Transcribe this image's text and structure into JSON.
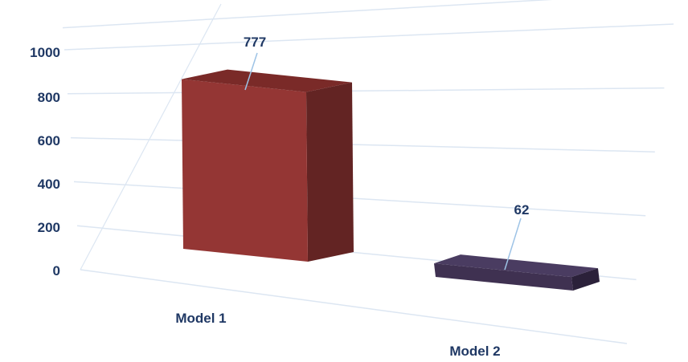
{
  "chart_data": {
    "type": "bar",
    "style": "3d",
    "categories": [
      "Model 1",
      "Model 2"
    ],
    "values": [
      777,
      62
    ],
    "data_labels": [
      "777",
      "62"
    ],
    "y_ticks": [
      "0",
      "200",
      "400",
      "600",
      "800",
      "1000"
    ],
    "ylim": [
      0,
      1000
    ],
    "grid": true,
    "legend": "none",
    "colors": {
      "Model 1": {
        "front": "#943634",
        "side": "#632423",
        "top": "#7a2a28"
      },
      "Model 2": {
        "front": "#3f3151",
        "side": "#2b213a",
        "top": "#4a3c61"
      },
      "text": "#1f3864",
      "grid": "#dce6f2"
    }
  }
}
